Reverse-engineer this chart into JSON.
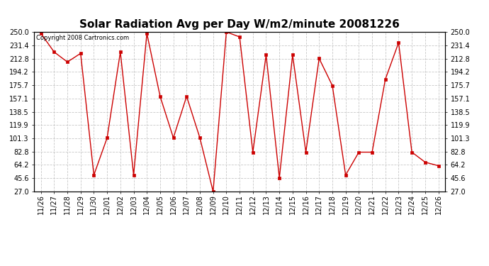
{
  "title": "Solar Radiation Avg per Day W/m2/minute 20081226",
  "copyright": "Copyright 2008 Cartronics.com",
  "labels": [
    "11/26",
    "11/27",
    "11/28",
    "11/29",
    "11/30",
    "12/01",
    "12/02",
    "12/03",
    "12/04",
    "12/05",
    "12/06",
    "12/07",
    "12/08",
    "12/09",
    "12/10",
    "12/11",
    "12/12",
    "12/13",
    "12/14",
    "12/15",
    "12/16",
    "12/17",
    "12/18",
    "12/19",
    "12/20",
    "12/21",
    "12/22",
    "12/23",
    "12/24",
    "12/25",
    "12/26"
  ],
  "values": [
    248,
    222,
    208,
    220,
    50,
    102,
    222,
    50,
    248,
    160,
    102,
    160,
    102,
    27,
    250,
    243,
    82,
    218,
    46,
    218,
    82,
    213,
    175,
    50,
    82,
    82,
    184,
    235,
    82,
    68,
    63
  ],
  "line_color": "#cc0000",
  "marker_color": "#cc0000",
  "background_color": "#ffffff",
  "plot_bg_color": "#ffffff",
  "grid_color": "#c8c8c8",
  "yticks": [
    27.0,
    45.6,
    64.2,
    82.8,
    101.3,
    119.9,
    138.5,
    157.1,
    175.7,
    194.2,
    212.8,
    231.4,
    250.0
  ],
  "ylim": [
    27.0,
    250.0
  ],
  "title_fontsize": 11,
  "tick_fontsize": 7,
  "copyright_fontsize": 6
}
